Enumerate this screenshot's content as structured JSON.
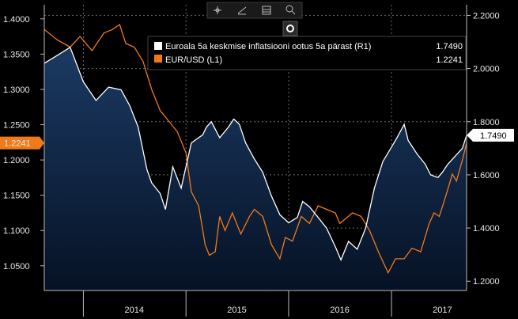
{
  "toolbar": {
    "items": [
      {
        "icon": "crosshair-icon"
      },
      {
        "icon": "draw-line-icon"
      },
      {
        "icon": "table-icon"
      },
      {
        "icon": "zoom-icon"
      }
    ],
    "legend_toggle_icon": "record-icon"
  },
  "colors": {
    "inflation": "#ffffff",
    "eurusd": "#f07a1a",
    "area_top": "#1b3a63",
    "area_bottom": "#061225",
    "grid": "#6a6a6a",
    "background": "#000000"
  },
  "chart_data": {
    "type": "line",
    "x_range": [
      "2013-08-15",
      "2017-09-25"
    ],
    "x_ticks": [
      "2014",
      "2015",
      "2016",
      "2017"
    ],
    "left_axis": {
      "ylim": [
        1.015,
        1.42
      ],
      "ticks": [
        "1.4000",
        "1.3500",
        "1.3000",
        "1.2500",
        "1.2000",
        "1.1500",
        "1.1000",
        "1.0500"
      ]
    },
    "right_axis": {
      "ylim": [
        1.165,
        2.24
      ],
      "ticks": [
        "2.2000",
        "2.0000",
        "1.8000",
        "1.6000",
        "1.4000",
        "1.2000"
      ]
    },
    "grid": true,
    "legend_position": "top-right",
    "series": [
      {
        "name": "Euroala 5a keskmise inflatsiooni ootus 5a pärast (R1)",
        "axis": "right",
        "last_value": "1.7490",
        "marker_label": "1.7490",
        "points": [
          [
            "2013-08-15",
            2.02
          ],
          [
            "2013-10-01",
            2.05
          ],
          [
            "2013-11-15",
            2.08
          ],
          [
            "2014-01-01",
            1.95
          ],
          [
            "2014-02-15",
            1.88
          ],
          [
            "2014-04-01",
            1.93
          ],
          [
            "2014-05-15",
            1.92
          ],
          [
            "2014-06-15",
            1.86
          ],
          [
            "2014-07-15",
            1.78
          ],
          [
            "2014-08-15",
            1.62
          ],
          [
            "2014-09-01",
            1.57
          ],
          [
            "2014-10-01",
            1.53
          ],
          [
            "2014-10-20",
            1.47
          ],
          [
            "2014-11-15",
            1.63
          ],
          [
            "2014-12-15",
            1.55
          ],
          [
            "2015-01-05",
            1.65
          ],
          [
            "2015-01-20",
            1.72
          ],
          [
            "2015-02-15",
            1.74
          ],
          [
            "2015-03-01",
            1.75
          ],
          [
            "2015-03-15",
            1.78
          ],
          [
            "2015-04-01",
            1.8
          ],
          [
            "2015-05-01",
            1.74
          ],
          [
            "2015-06-01",
            1.78
          ],
          [
            "2015-06-20",
            1.81
          ],
          [
            "2015-07-10",
            1.79
          ],
          [
            "2015-08-01",
            1.72
          ],
          [
            "2015-09-01",
            1.66
          ],
          [
            "2015-10-01",
            1.61
          ],
          [
            "2015-11-01",
            1.52
          ],
          [
            "2015-12-01",
            1.45
          ],
          [
            "2016-01-01",
            1.42
          ],
          [
            "2016-02-01",
            1.44
          ],
          [
            "2016-02-20",
            1.5
          ],
          [
            "2016-03-15",
            1.48
          ],
          [
            "2016-04-15",
            1.44
          ],
          [
            "2016-05-15",
            1.4
          ],
          [
            "2016-06-15",
            1.33
          ],
          [
            "2016-07-05",
            1.28
          ],
          [
            "2016-08-01",
            1.35
          ],
          [
            "2016-09-01",
            1.32
          ],
          [
            "2016-10-01",
            1.4
          ],
          [
            "2016-11-01",
            1.55
          ],
          [
            "2016-12-01",
            1.65
          ],
          [
            "2017-01-15",
            1.73
          ],
          [
            "2017-02-15",
            1.79
          ],
          [
            "2017-03-01",
            1.73
          ],
          [
            "2017-04-01",
            1.68
          ],
          [
            "2017-05-01",
            1.64
          ],
          [
            "2017-05-20",
            1.6
          ],
          [
            "2017-06-15",
            1.59
          ],
          [
            "2017-07-01",
            1.61
          ],
          [
            "2017-07-20",
            1.64
          ],
          [
            "2017-08-15",
            1.67
          ],
          [
            "2017-09-10",
            1.7
          ],
          [
            "2017-09-25",
            1.749
          ]
        ]
      },
      {
        "name": "EUR/USD (L1)",
        "axis": "left",
        "last_value": "1.2241",
        "marker_label": "1.2241",
        "points": [
          [
            "2013-08-15",
            1.385
          ],
          [
            "2013-10-01",
            1.37
          ],
          [
            "2013-11-15",
            1.36
          ],
          [
            "2013-12-20",
            1.375
          ],
          [
            "2014-02-01",
            1.355
          ],
          [
            "2014-03-15",
            1.38
          ],
          [
            "2014-04-15",
            1.385
          ],
          [
            "2014-05-10",
            1.392
          ],
          [
            "2014-06-01",
            1.365
          ],
          [
            "2014-07-01",
            1.36
          ],
          [
            "2014-08-01",
            1.34
          ],
          [
            "2014-09-01",
            1.3
          ],
          [
            "2014-10-01",
            1.27
          ],
          [
            "2014-11-01",
            1.255
          ],
          [
            "2014-12-01",
            1.24
          ],
          [
            "2015-01-01",
            1.21
          ],
          [
            "2015-01-20",
            1.155
          ],
          [
            "2015-02-15",
            1.135
          ],
          [
            "2015-03-10",
            1.08
          ],
          [
            "2015-03-25",
            1.065
          ],
          [
            "2015-04-15",
            1.07
          ],
          [
            "2015-05-01",
            1.12
          ],
          [
            "2015-05-20",
            1.1
          ],
          [
            "2015-06-15",
            1.125
          ],
          [
            "2015-07-15",
            1.095
          ],
          [
            "2015-08-15",
            1.12
          ],
          [
            "2015-09-01",
            1.13
          ],
          [
            "2015-10-01",
            1.12
          ],
          [
            "2015-11-01",
            1.08
          ],
          [
            "2015-12-01",
            1.06
          ],
          [
            "2015-12-20",
            1.09
          ],
          [
            "2016-01-15",
            1.085
          ],
          [
            "2016-02-15",
            1.12
          ],
          [
            "2016-03-15",
            1.11
          ],
          [
            "2016-04-15",
            1.135
          ],
          [
            "2016-05-15",
            1.13
          ],
          [
            "2016-06-15",
            1.125
          ],
          [
            "2016-07-01",
            1.11
          ],
          [
            "2016-08-15",
            1.125
          ],
          [
            "2016-09-15",
            1.12
          ],
          [
            "2016-10-15",
            1.1
          ],
          [
            "2016-11-15",
            1.07
          ],
          [
            "2016-12-20",
            1.04
          ],
          [
            "2017-01-15",
            1.06
          ],
          [
            "2017-02-15",
            1.06
          ],
          [
            "2017-03-15",
            1.075
          ],
          [
            "2017-04-15",
            1.07
          ],
          [
            "2017-05-15",
            1.11
          ],
          [
            "2017-06-01",
            1.125
          ],
          [
            "2017-06-20",
            1.12
          ],
          [
            "2017-07-10",
            1.145
          ],
          [
            "2017-07-25",
            1.165
          ],
          [
            "2017-08-05",
            1.18
          ],
          [
            "2017-08-20",
            1.17
          ],
          [
            "2017-09-10",
            1.2
          ],
          [
            "2017-09-25",
            1.2241
          ]
        ]
      }
    ]
  }
}
